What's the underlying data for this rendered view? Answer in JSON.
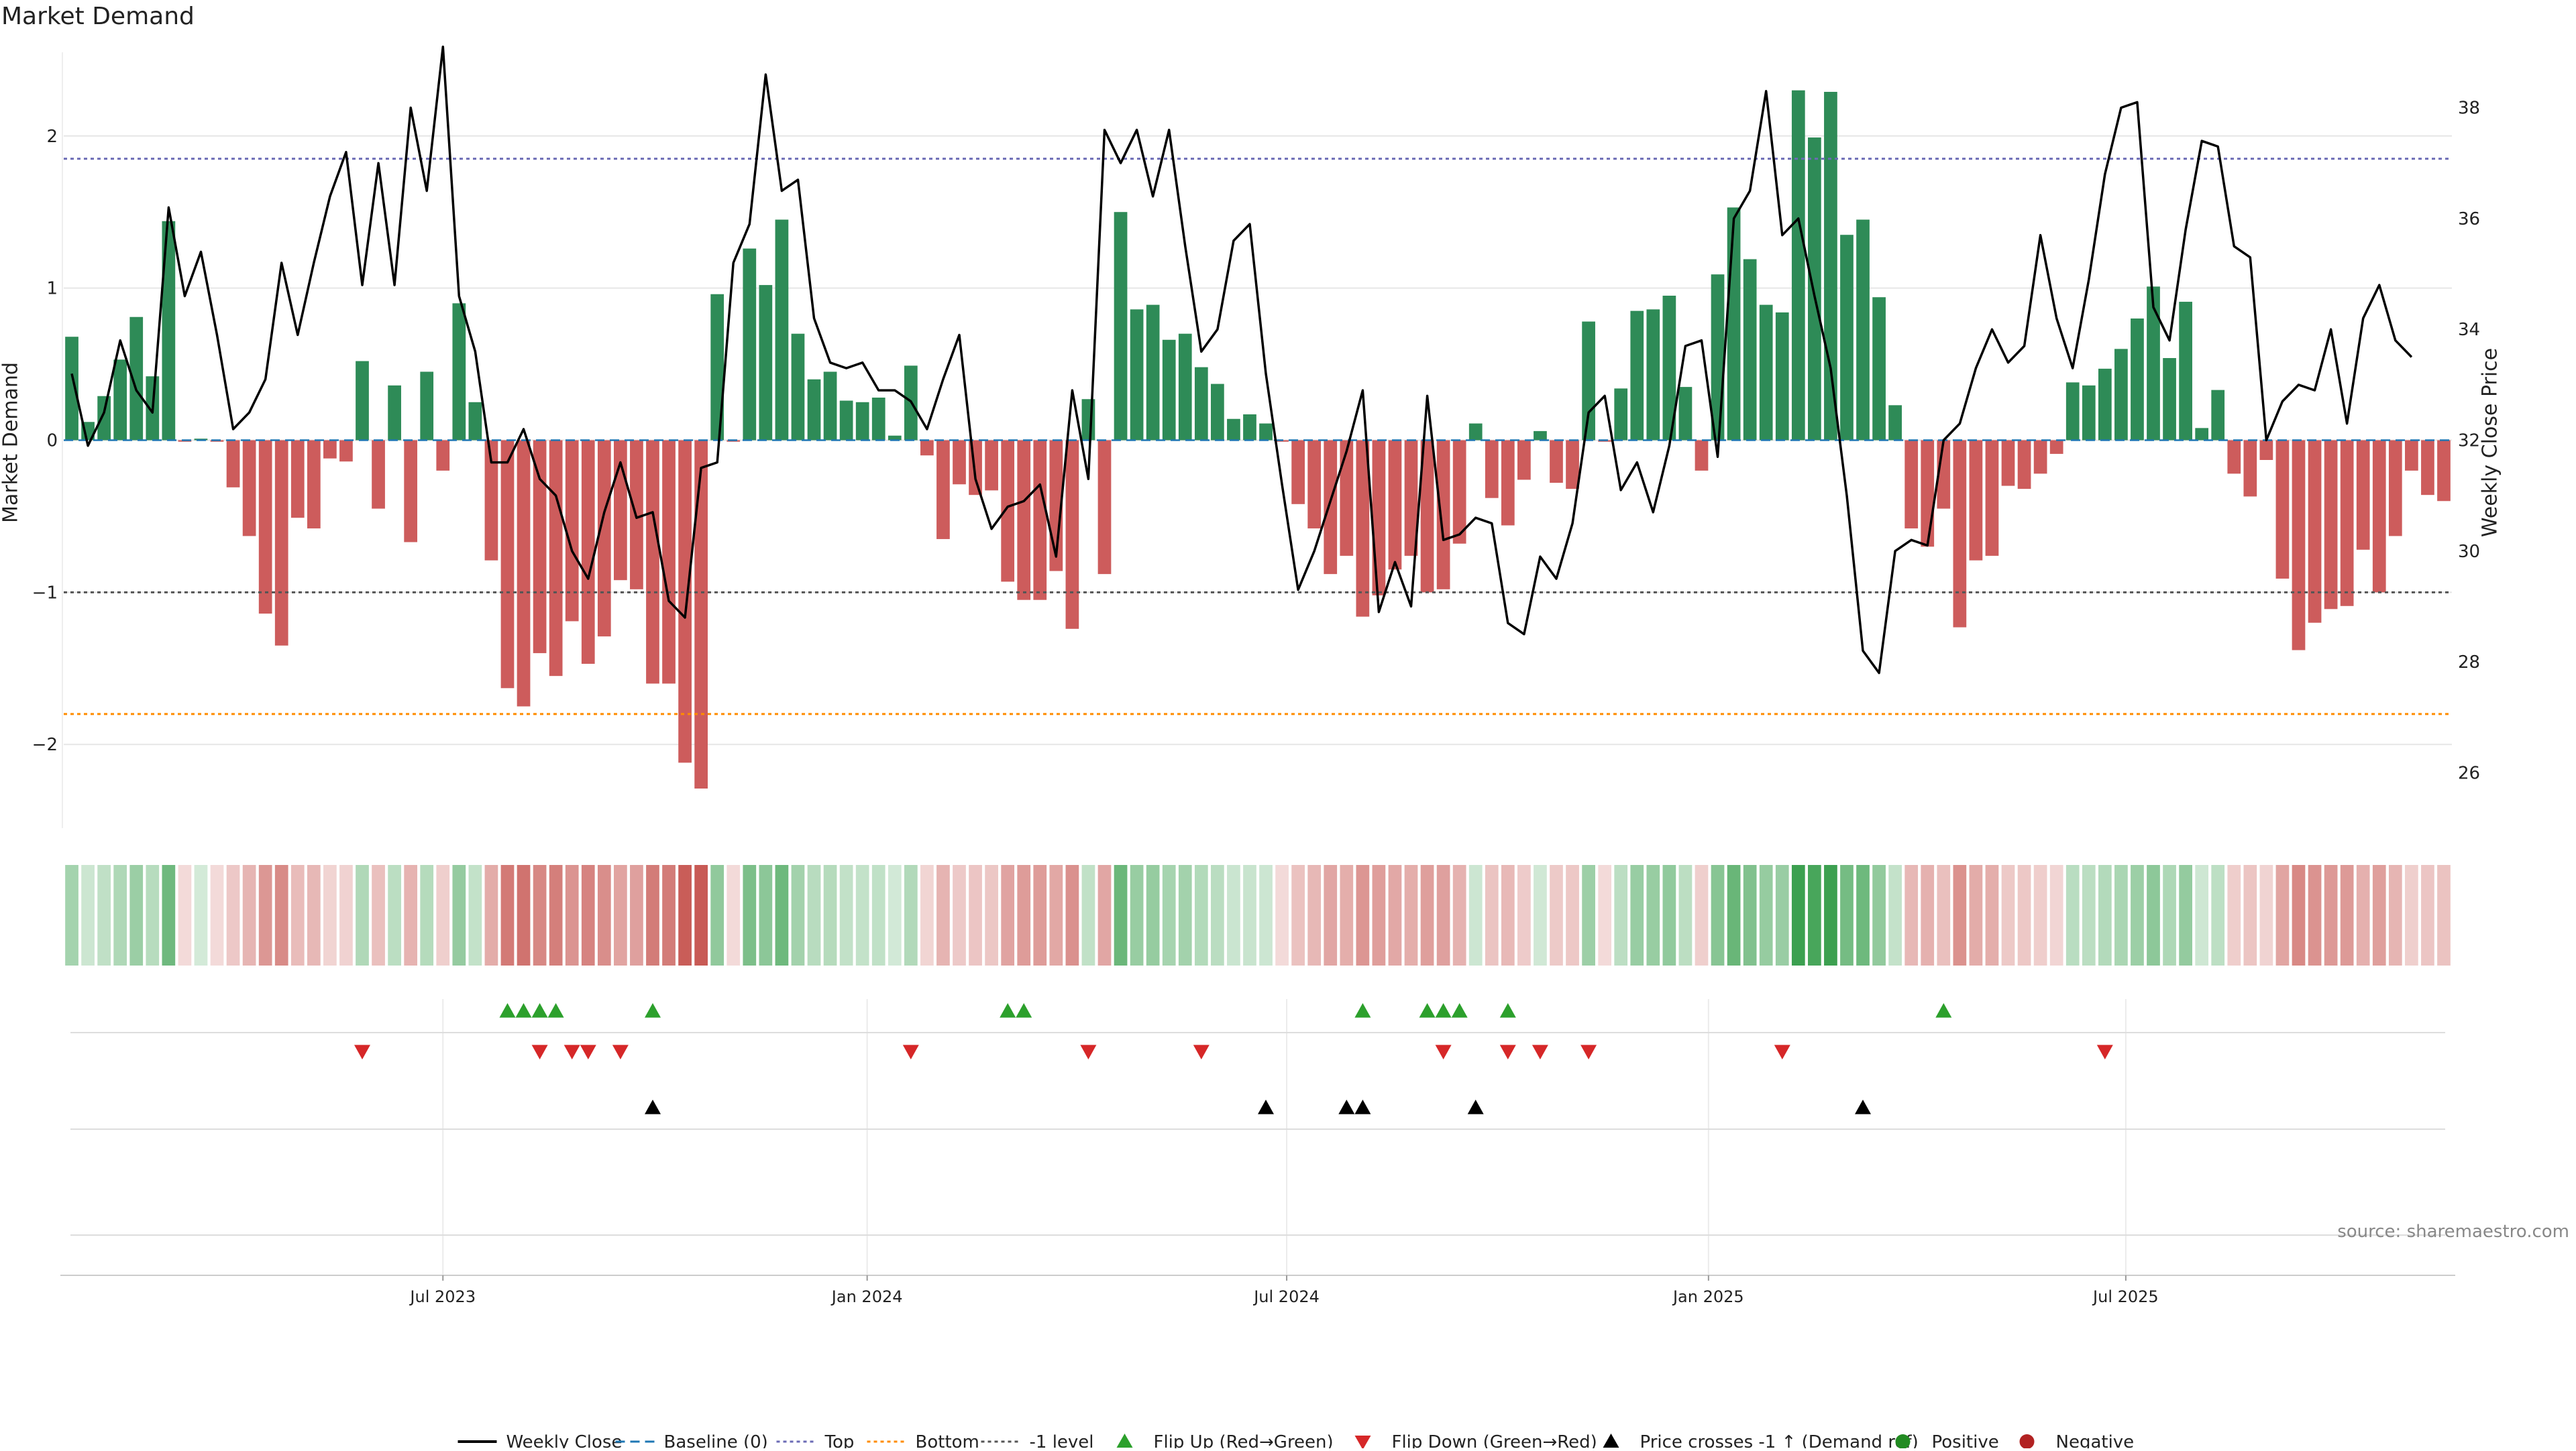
{
  "title": "Market Demand",
  "source_note": "source: sharemaestro.com",
  "colors": {
    "positive_bar": "#2e8b57",
    "negative_bar": "#cd5c5c",
    "price_line": "#000000",
    "top_line": "#6b6bb5",
    "bottom_line": "#ff8c00",
    "minus_one_line": "#555555",
    "baseline": "#1f77b4",
    "flip_up": "#2ca02c",
    "flip_down": "#d62728",
    "cross": "#000000",
    "positive_dot": "#228b22",
    "negative_dot": "#b22222",
    "grid": "#e6e6e6"
  },
  "legend": [
    {
      "key": "weekly_close",
      "label": "Weekly Close",
      "symbol": "line",
      "color": "#000000"
    },
    {
      "key": "baseline",
      "label": "Baseline (0)",
      "symbol": "dash",
      "color": "#1f77b4"
    },
    {
      "key": "top",
      "label": "Top",
      "symbol": "dot",
      "color": "#6b6bb5"
    },
    {
      "key": "bottom",
      "label": "Bottom",
      "symbol": "dot",
      "color": "#ff8c00"
    },
    {
      "key": "minus1",
      "label": "-1 level",
      "symbol": "dot",
      "color": "#555555"
    },
    {
      "key": "flip_up",
      "label": "Flip Up (Red→Green)",
      "symbol": "tri-up",
      "color": "#2ca02c"
    },
    {
      "key": "flip_down",
      "label": "Flip Down (Green→Red)",
      "symbol": "tri-down",
      "color": "#d62728"
    },
    {
      "key": "cross",
      "label": "Price crosses -1 ↑ (Demand ref)",
      "symbol": "tri-up",
      "color": "#000000"
    },
    {
      "key": "positive",
      "label": "Positive",
      "symbol": "circle",
      "color": "#228b22"
    },
    {
      "key": "negative",
      "label": "Negative",
      "symbol": "circle",
      "color": "#b22222"
    }
  ],
  "chart_data": {
    "type": "bar",
    "title": "Market Demand",
    "ylabel": "Market Demand",
    "y2label": "Weekly Close Price",
    "ylim": [
      -2.55,
      2.55
    ],
    "y2lim": [
      25,
      39
    ],
    "yticks": [
      -2,
      -1,
      0,
      1,
      2
    ],
    "y2ticks": [
      26,
      28,
      30,
      32,
      34,
      36,
      38
    ],
    "start_week_offset": -23,
    "x_ticks": [
      {
        "label": "Jul 2023",
        "week": 0
      },
      {
        "label": "Jan 2024",
        "week": 26.29
      },
      {
        "label": "Jul 2024",
        "week": 52.29
      },
      {
        "label": "Jan 2025",
        "week": 78.43
      },
      {
        "label": "Jul 2025",
        "week": 104.29
      }
    ],
    "levels": {
      "top": 1.85,
      "bottom": -1.8,
      "minus_one": -1,
      "baseline": 0
    },
    "demand": [
      0.68,
      0.12,
      0.29,
      0.53,
      0.81,
      0.42,
      1.44,
      -0.01,
      0.01,
      -0.01,
      -0.31,
      -0.63,
      -1.14,
      -1.35,
      -0.51,
      -0.58,
      -0.12,
      -0.14,
      0.52,
      -0.45,
      0.36,
      -0.67,
      0.45,
      -0.2,
      0.9,
      0.25,
      -0.79,
      -1.63,
      -1.75,
      -1.4,
      -1.55,
      -1.19,
      -1.47,
      -1.29,
      -0.92,
      -0.98,
      -1.6,
      -1.6,
      -2.12,
      -2.29,
      0.96,
      -0.01,
      1.26,
      1.02,
      1.45,
      0.7,
      0.4,
      0.45,
      0.26,
      0.25,
      0.28,
      0.03,
      0.49,
      -0.1,
      -0.65,
      -0.29,
      -0.36,
      -0.33,
      -0.93,
      -1.05,
      -1.05,
      -0.86,
      -1.24,
      0.27,
      -0.88,
      1.5,
      0.86,
      0.89,
      0.66,
      0.7,
      0.48,
      0.37,
      0.14,
      0.17,
      0.11,
      -0.01,
      -0.42,
      -0.58,
      -0.88,
      -0.76,
      -1.16,
      -1.02,
      -0.85,
      -0.76,
      -1.0,
      -0.98,
      -0.68,
      0.11,
      -0.38,
      -0.56,
      -0.26,
      0.06,
      -0.28,
      -0.32,
      0.78,
      -0.01,
      0.34,
      0.85,
      0.86,
      0.95,
      0.35,
      -0.2,
      1.09,
      1.53,
      1.19,
      0.89,
      0.84,
      2.3,
      1.99,
      2.29,
      1.35,
      1.45,
      0.94,
      0.23,
      -0.58,
      -0.7,
      -0.45,
      -1.23,
      -0.79,
      -0.76,
      -0.3,
      -0.32,
      -0.22,
      -0.09,
      0.38,
      0.36,
      0.47,
      0.6,
      0.8,
      1.01,
      0.54,
      0.91,
      0.08,
      0.33,
      -0.22,
      -0.37,
      -0.13,
      -0.91,
      -1.38,
      -1.2,
      -1.11,
      -1.09,
      -0.72,
      -1.0,
      -0.63,
      -0.2,
      -0.36,
      -0.4
    ],
    "price": [
      33.2,
      31.9,
      32.5,
      33.8,
      32.9,
      32.5,
      36.2,
      34.6,
      35.4,
      33.9,
      32.2,
      32.5,
      33.1,
      35.2,
      33.9,
      35.2,
      36.4,
      37.2,
      34.8,
      37.0,
      34.8,
      38.0,
      36.5,
      39.1,
      34.6,
      33.6,
      31.6,
      31.6,
      32.2,
      31.3,
      31.0,
      30.0,
      29.5,
      30.7,
      31.6,
      30.6,
      30.7,
      29.1,
      28.8,
      31.5,
      31.6,
      35.2,
      35.9,
      38.6,
      36.5,
      36.7,
      34.2,
      33.4,
      33.3,
      33.4,
      32.9,
      32.9,
      32.7,
      32.2,
      33.1,
      33.9,
      31.3,
      30.4,
      30.8,
      30.9,
      31.2,
      29.9,
      32.9,
      31.3,
      37.6,
      37.0,
      37.6,
      36.4,
      37.6,
      35.5,
      33.6,
      34.0,
      35.6,
      35.9,
      33.2,
      31.2,
      29.3,
      30.0,
      30.9,
      31.8,
      32.9,
      28.9,
      29.8,
      29.0,
      32.8,
      30.2,
      30.3,
      30.6,
      30.5,
      28.7,
      28.5,
      29.9,
      29.5,
      30.5,
      32.5,
      32.8,
      31.1,
      31.6,
      30.7,
      31.9,
      33.7,
      33.8,
      31.7,
      36.0,
      36.5,
      38.3,
      35.7,
      36.0,
      34.6,
      33.3,
      31.0,
      28.2,
      27.8,
      30.0,
      30.2,
      30.1,
      32.0,
      32.3,
      33.3,
      34.0,
      33.4,
      33.7,
      35.7,
      34.2,
      33.3,
      34.9,
      36.8,
      38.0,
      38.1,
      34.4,
      33.8,
      35.8,
      37.4,
      37.3,
      35.5,
      35.3,
      32.0,
      32.7,
      33.0,
      32.9,
      34.0,
      32.3,
      34.2,
      34.8,
      33.8,
      33.5
    ],
    "flip_up_weeks": [
      4,
      5,
      6,
      7,
      13,
      35,
      36,
      57,
      61,
      62,
      63,
      66,
      93
    ],
    "flip_down_weeks": [
      -5,
      6,
      8,
      9,
      11,
      29,
      40,
      47,
      62,
      66,
      68,
      71,
      83,
      103
    ],
    "cross_weeks": [
      13,
      51,
      56,
      57,
      64,
      88
    ]
  }
}
